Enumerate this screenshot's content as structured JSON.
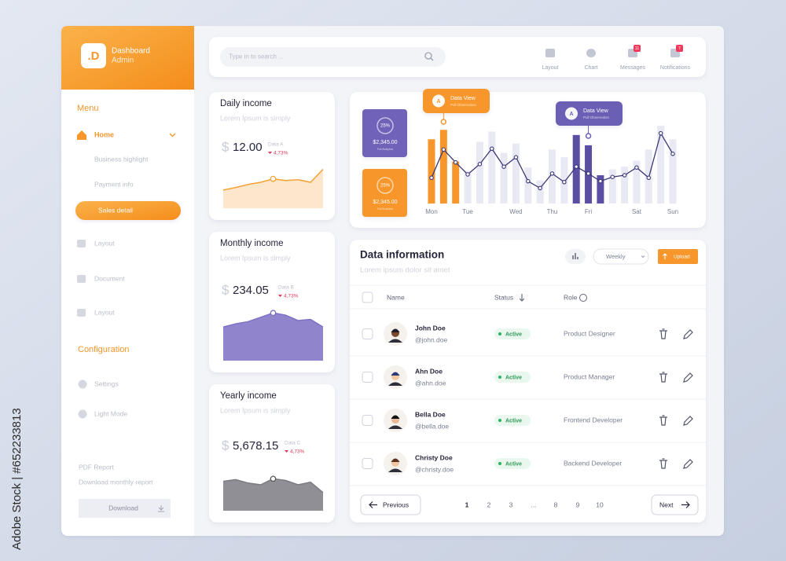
{
  "watermark": "Adobe Stock | #652233813",
  "sidebar": {
    "logo": ".D",
    "brand": "Dashboard",
    "role": "Admin",
    "menu_title": "Menu",
    "home": "Home",
    "subitems": [
      "Business highlight",
      "Payment info",
      "Sales detail"
    ],
    "items": [
      "Layout",
      "Document",
      "Layout"
    ],
    "config_title": "Configuration",
    "config_items": [
      "Settings",
      "Light Mode"
    ],
    "pdf_title": "PDF Report",
    "pdf_text": "Download monthly report",
    "download": "Download"
  },
  "topbar": {
    "search_placeholder": "Type in to search ...",
    "icons": [
      {
        "label": "Layout"
      },
      {
        "label": "Chart"
      },
      {
        "label": "Messages",
        "badge": 11
      },
      {
        "label": "Notifications",
        "badge": 7
      }
    ]
  },
  "income_cards": [
    {
      "title": "Daily income",
      "subtitle": "Lorem Ipsum is simply",
      "currency": "$",
      "amount": "12.00",
      "series": "Data A",
      "change": "4,73%",
      "color": "#f7a133",
      "spark": [
        42,
        48,
        55,
        60,
        68,
        64,
        66,
        60,
        90
      ]
    },
    {
      "title": "Monthly income",
      "subtitle": "Lorem Ipsum is simply",
      "currency": "$",
      "amount": "234.05",
      "series": "Data B",
      "change": "4,73%",
      "color": "#7d70c4",
      "spark": [
        62,
        68,
        72,
        80,
        88,
        84,
        74,
        76,
        62
      ]
    },
    {
      "title": "Yearly income",
      "subtitle": "Lorem Ipsum is simply",
      "currency": "$",
      "amount": "5,678.15",
      "series": "Data C",
      "change": "4,73%",
      "color": "#7b7b82",
      "spark": [
        68,
        72,
        64,
        60,
        74,
        70,
        60,
        66,
        42
      ]
    }
  ],
  "stat_cards": [
    {
      "percent": "25%",
      "amount": "$2,345.00",
      "caption": "Full Analytics",
      "color": "#6f62b8"
    },
    {
      "percent": "25%",
      "amount": "$2,345.00",
      "caption": "Full Analytics",
      "color": "#f7962a"
    }
  ],
  "chart_data": {
    "type": "bar",
    "categories": [
      "Mon",
      null,
      null,
      "Tue",
      null,
      null,
      null,
      "Wed",
      null,
      null,
      "Thu",
      null,
      null,
      "Fri",
      null,
      null,
      null,
      "Sat",
      null,
      null,
      "Sun"
    ],
    "values": [
      75,
      86,
      49,
      38,
      72,
      84,
      59,
      70,
      42,
      27,
      63,
      54,
      80,
      68,
      33,
      40,
      43,
      50,
      63,
      91,
      75
    ],
    "colors": [
      "#f7962a",
      "#f7962a",
      "#f7962a",
      "#e9e9f4",
      "#e9e9f4",
      "#e9e9f4",
      "#e9e9f4",
      "#e9e9f4",
      "#e9e9f4",
      "#e9e9f4",
      "#e9e9f4",
      "#e9e9f4",
      "#5b4fa3",
      "#5b4fa3",
      "#5b4fa3",
      "#e9e9f4",
      "#e9e9f4",
      "#e9e9f4",
      "#e9e9f4",
      "#e9e9f4",
      "#e9e9f4"
    ],
    "line_values": [
      30,
      63,
      48,
      34,
      46,
      64,
      43,
      54,
      26,
      18,
      35,
      25,
      43,
      35,
      26,
      31,
      33,
      42,
      30,
      82,
      58
    ],
    "line_color": "#3a3878",
    "ylim": [
      0,
      100
    ],
    "callouts": [
      {
        "badge": "A",
        "title": "Data View",
        "text": "Pull Observation"
      },
      {
        "badge": "A",
        "title": "Data View",
        "text": "Pull Observation"
      }
    ]
  },
  "table": {
    "title": "Data information",
    "subtitle": "Lorem ipsum dolor sit amet",
    "view": "Weekly",
    "upload": "Upload",
    "columns": [
      "Name",
      "Status",
      "Role"
    ],
    "rows": [
      [
        "John Doe",
        "@john.doe",
        "Active",
        "Product Designer"
      ],
      [
        "Ahn Doe",
        "@ahn.doe",
        "Active",
        "Product Manager"
      ],
      [
        "Bella Doe",
        "@bella.doe",
        "Active",
        "Frontend Developer"
      ],
      [
        "Christy Doe",
        "@christy.doe",
        "Active",
        "Backend Developer"
      ]
    ],
    "pagination": {
      "previous": "Previous",
      "pages": [
        "1",
        "2",
        "3",
        "...",
        "8",
        "9",
        "10"
      ],
      "next": "Next"
    }
  }
}
